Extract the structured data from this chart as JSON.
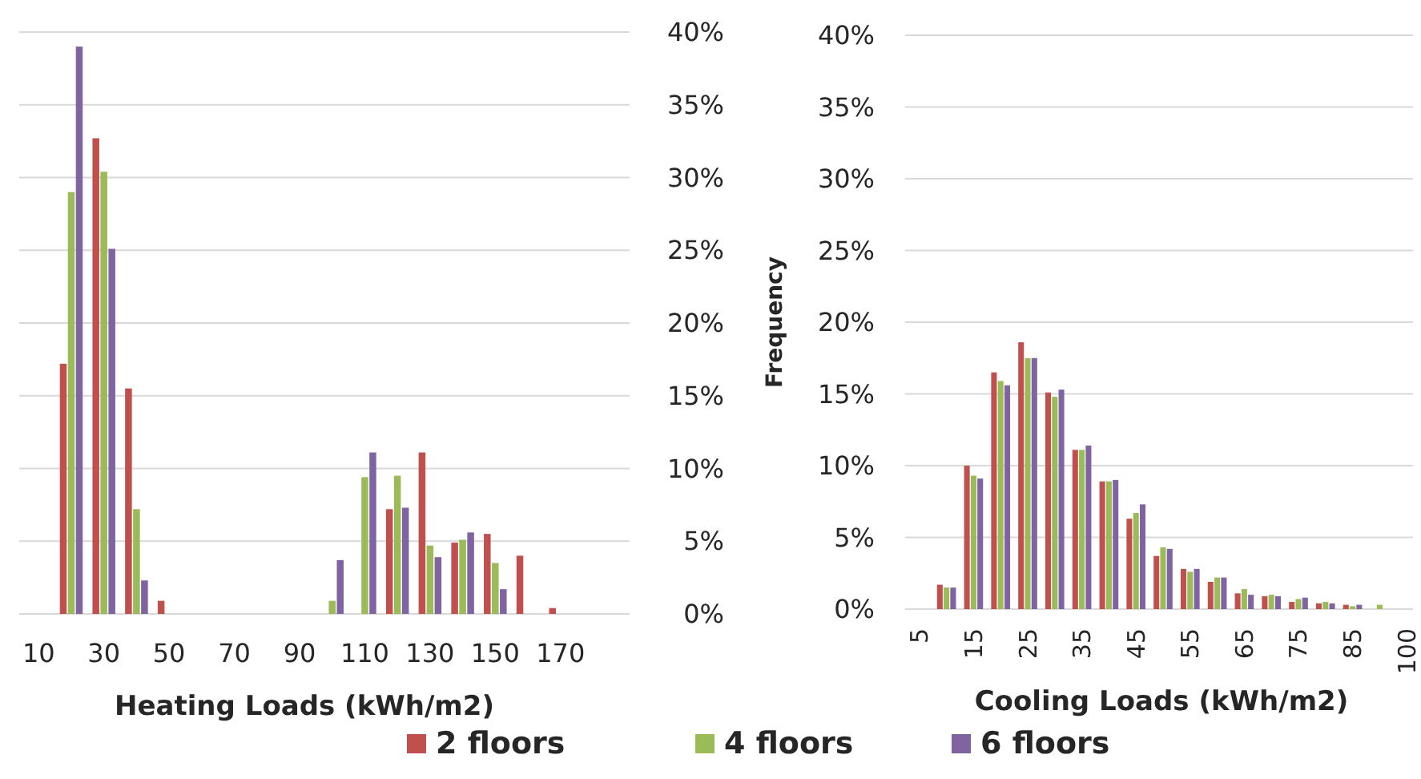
{
  "chart_data": [
    {
      "type": "bar",
      "xlabel": "Heating Loads (kWh/m2)",
      "categories": [
        "10",
        null,
        "30",
        null,
        "50",
        null,
        "70",
        null,
        "90",
        null,
        "110",
        null,
        "130",
        null,
        "150",
        null,
        "170"
      ],
      "series": [
        {
          "name": "2 floors",
          "color": "#c0504d",
          "values": [
            0,
            17.2,
            32.7,
            15.5,
            0.9,
            0,
            0,
            0,
            0,
            0,
            0,
            7.2,
            11.1,
            4.9,
            5.5,
            4.0,
            0.4
          ]
        },
        {
          "name": "4 floors",
          "color": "#9bbb59",
          "values": [
            0,
            29.0,
            30.4,
            7.2,
            0,
            0,
            0,
            0,
            0,
            0.9,
            9.4,
            9.5,
            4.7,
            5.1,
            3.5,
            0,
            0
          ]
        },
        {
          "name": "6 floors",
          "color": "#8064a2",
          "values": [
            0,
            39.0,
            25.1,
            2.3,
            0,
            0,
            0,
            0,
            0,
            3.7,
            11.1,
            7.3,
            3.9,
            5.6,
            1.7,
            0,
            0
          ]
        }
      ],
      "ylim": [
        0,
        40
      ],
      "yticks": [
        {
          "value": 0,
          "label": "0%"
        },
        {
          "value": 5,
          "label": "5%"
        },
        {
          "value": 10,
          "label": "10%"
        },
        {
          "value": 15,
          "label": "15%"
        },
        {
          "value": 20,
          "label": "20%"
        },
        {
          "value": 25,
          "label": "25%"
        },
        {
          "value": 30,
          "label": "30%"
        },
        {
          "value": 35,
          "label": "35%"
        },
        {
          "value": 40,
          "label": "40%"
        }
      ],
      "grid": "y",
      "legend": "bottom"
    },
    {
      "type": "bar",
      "xlabel": "Cooling Loads (kWh/m2)",
      "ylabel": "Frequency",
      "categories": [
        "5",
        null,
        "15",
        null,
        "25",
        null,
        "35",
        null,
        "45",
        null,
        "55",
        null,
        "65",
        null,
        "75",
        null,
        "85",
        null,
        "100"
      ],
      "series": [
        {
          "color": "#c0504d",
          "values": [
            0,
            1.7,
            10.0,
            16.5,
            18.6,
            15.1,
            11.1,
            8.9,
            6.3,
            3.7,
            2.8,
            1.9,
            1.1,
            0.9,
            0.5,
            0.4,
            0.3,
            0,
            0
          ]
        },
        {
          "color": "#9bbb59",
          "values": [
            0,
            1.5,
            9.3,
            15.9,
            17.5,
            14.8,
            11.1,
            8.9,
            6.7,
            4.3,
            2.6,
            2.2,
            1.4,
            1.0,
            0.7,
            0.5,
            0.2,
            0.3,
            0
          ]
        },
        {
          "color": "#8064a2",
          "values": [
            0,
            1.5,
            9.1,
            15.6,
            17.5,
            15.3,
            11.4,
            9.0,
            7.3,
            4.2,
            2.8,
            2.2,
            1.0,
            0.9,
            0.8,
            0.4,
            0.3,
            0,
            0
          ]
        }
      ],
      "ylim": [
        0,
        40
      ],
      "yticks": [
        {
          "value": 0,
          "label": "0%"
        },
        {
          "value": 5,
          "label": "5%"
        },
        {
          "value": 10,
          "label": "10%"
        },
        {
          "value": 15,
          "label": "15%"
        },
        {
          "value": 20,
          "label": "20%"
        },
        {
          "value": 25,
          "label": "25%"
        },
        {
          "value": 30,
          "label": "30%"
        },
        {
          "value": 35,
          "label": "35%"
        },
        {
          "value": 40,
          "label": "40%"
        }
      ],
      "grid": "y"
    }
  ]
}
